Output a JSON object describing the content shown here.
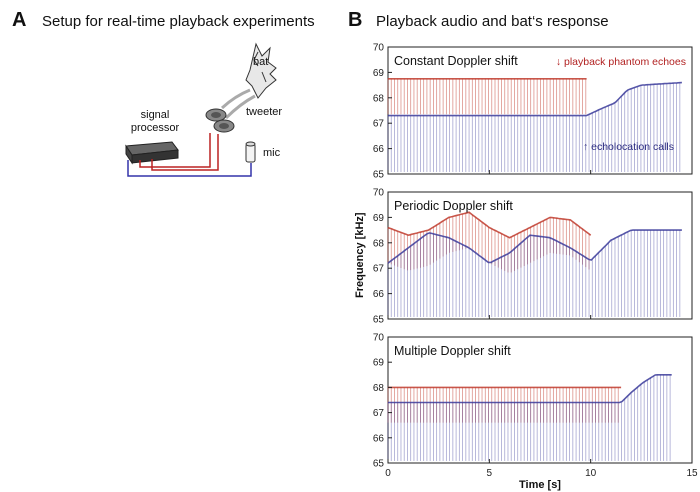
{
  "panel_a": {
    "letter": "A",
    "title": "Setup for real-time playback experiments",
    "labels": {
      "bat": "bat",
      "tweeter": "tweeter",
      "signal_processor_line1": "signal",
      "signal_processor_line2": "processor",
      "mic": "mic"
    }
  },
  "panel_b": {
    "letter": "B",
    "title": "Playback audio and bat‘s response"
  },
  "chart_data": [
    {
      "type": "spectrogram",
      "title": "Constant Doppler shift",
      "annotations": [
        "↓ playback phantom echoes",
        "↑ echolocation calls"
      ],
      "ylim": [
        65,
        70
      ],
      "y_ticks": [
        "70",
        "69",
        "68",
        "67",
        "66",
        "65"
      ],
      "xlim": [
        0,
        15
      ],
      "series": [
        {
          "name": "playback phantom echoes",
          "color": "#c0392b",
          "x": [
            0,
            9.8
          ],
          "y": [
            68.75,
            68.75
          ]
        },
        {
          "name": "echolocation calls",
          "color": "#3a3a9a",
          "x": [
            0,
            9.8,
            10.6,
            11.2,
            11.8,
            12.5,
            14.5
          ],
          "y": [
            67.3,
            67.3,
            67.6,
            67.8,
            68.3,
            68.5,
            68.6
          ]
        }
      ]
    },
    {
      "type": "spectrogram",
      "title": "Periodic Doppler shift",
      "ylabel": "Frequency [kHz]",
      "ylim": [
        65,
        70
      ],
      "y_ticks": [
        "70",
        "69",
        "68",
        "67",
        "66",
        "65"
      ],
      "xlim": [
        0,
        15
      ],
      "series": [
        {
          "name": "playback phantom echoes",
          "color": "#c0392b",
          "x": [
            0,
            1.0,
            2.0,
            3.0,
            4.0,
            5.0,
            6.0,
            7.0,
            8.0,
            9.0,
            10.0
          ],
          "y": [
            68.6,
            68.3,
            68.5,
            69.0,
            69.2,
            68.6,
            68.2,
            68.6,
            69.0,
            68.9,
            68.3
          ]
        },
        {
          "name": "echolocation calls",
          "color": "#3a3a9a",
          "x": [
            0,
            1.0,
            2.0,
            3.0,
            4.0,
            5.0,
            6.0,
            7.0,
            8.0,
            9.0,
            10.0,
            11.0,
            12.0,
            13.0,
            14.5
          ],
          "y": [
            67.2,
            67.8,
            68.4,
            68.2,
            67.8,
            67.2,
            67.6,
            68.3,
            68.2,
            67.8,
            67.3,
            68.1,
            68.5,
            68.5,
            68.5
          ]
        }
      ]
    },
    {
      "type": "spectrogram",
      "title": "Multiple Doppler shift",
      "ylim": [
        65,
        70
      ],
      "y_ticks": [
        "70",
        "69",
        "68",
        "67",
        "66",
        "65"
      ],
      "x_ticks": [
        "0",
        "5",
        "10",
        "15"
      ],
      "xlim": [
        0,
        15
      ],
      "xlabel": "Time [s]",
      "series": [
        {
          "name": "playback phantom echoes",
          "color": "#c0392b",
          "x": [
            0,
            11.5
          ],
          "y": [
            68.0,
            68.0
          ]
        },
        {
          "name": "echolocation calls",
          "color": "#3a3a9a",
          "x": [
            0,
            11.5,
            12.0,
            12.6,
            13.2,
            14.0
          ],
          "y": [
            67.4,
            67.4,
            67.8,
            68.2,
            68.5,
            68.5
          ]
        }
      ]
    }
  ]
}
